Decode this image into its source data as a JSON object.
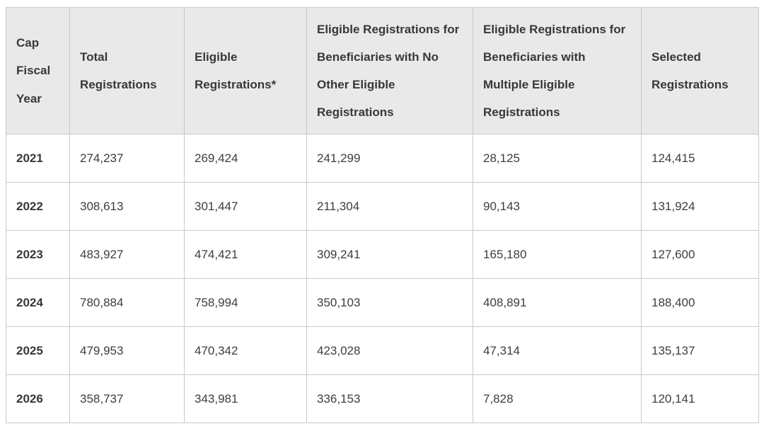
{
  "colors": {
    "header_background": "#e9e9e9",
    "inner_border": "#c9c9c9",
    "outer_border": "#b3b3b3",
    "body_text": "#3d3d3d",
    "page_background": "#ffffff"
  },
  "table": {
    "columns": [
      {
        "label": "Cap Fiscal Year"
      },
      {
        "label": "Total Registrations"
      },
      {
        "label": "Eligible Registrations*"
      },
      {
        "label": "Eligible Registrations for Beneficiaries with No Other Eligible Registrations"
      },
      {
        "label": "Eligible Registrations for Beneficiaries with Multiple Eligible Registrations"
      },
      {
        "label": "Selected Registrations"
      }
    ],
    "rows": [
      {
        "year": "2021",
        "total": "274,237",
        "eligible": "269,424",
        "no_other": "241,299",
        "multiple": "28,125",
        "selected": "124,415"
      },
      {
        "year": "2022",
        "total": "308,613",
        "eligible": "301,447",
        "no_other": "211,304",
        "multiple": "90,143",
        "selected": "131,924"
      },
      {
        "year": "2023",
        "total": "483,927",
        "eligible": "474,421",
        "no_other": "309,241",
        "multiple": "165,180",
        "selected": "127,600"
      },
      {
        "year": "2024",
        "total": "780,884",
        "eligible": "758,994",
        "no_other": "350,103",
        "multiple": "408,891",
        "selected": "188,400"
      },
      {
        "year": "2025",
        "total": "479,953",
        "eligible": "470,342",
        "no_other": "423,028",
        "multiple": "47,314",
        "selected": "135,137"
      },
      {
        "year": "2026",
        "total": "358,737",
        "eligible": "343,981",
        "no_other": "336,153",
        "multiple": "7,828",
        "selected": "120,141"
      }
    ]
  }
}
